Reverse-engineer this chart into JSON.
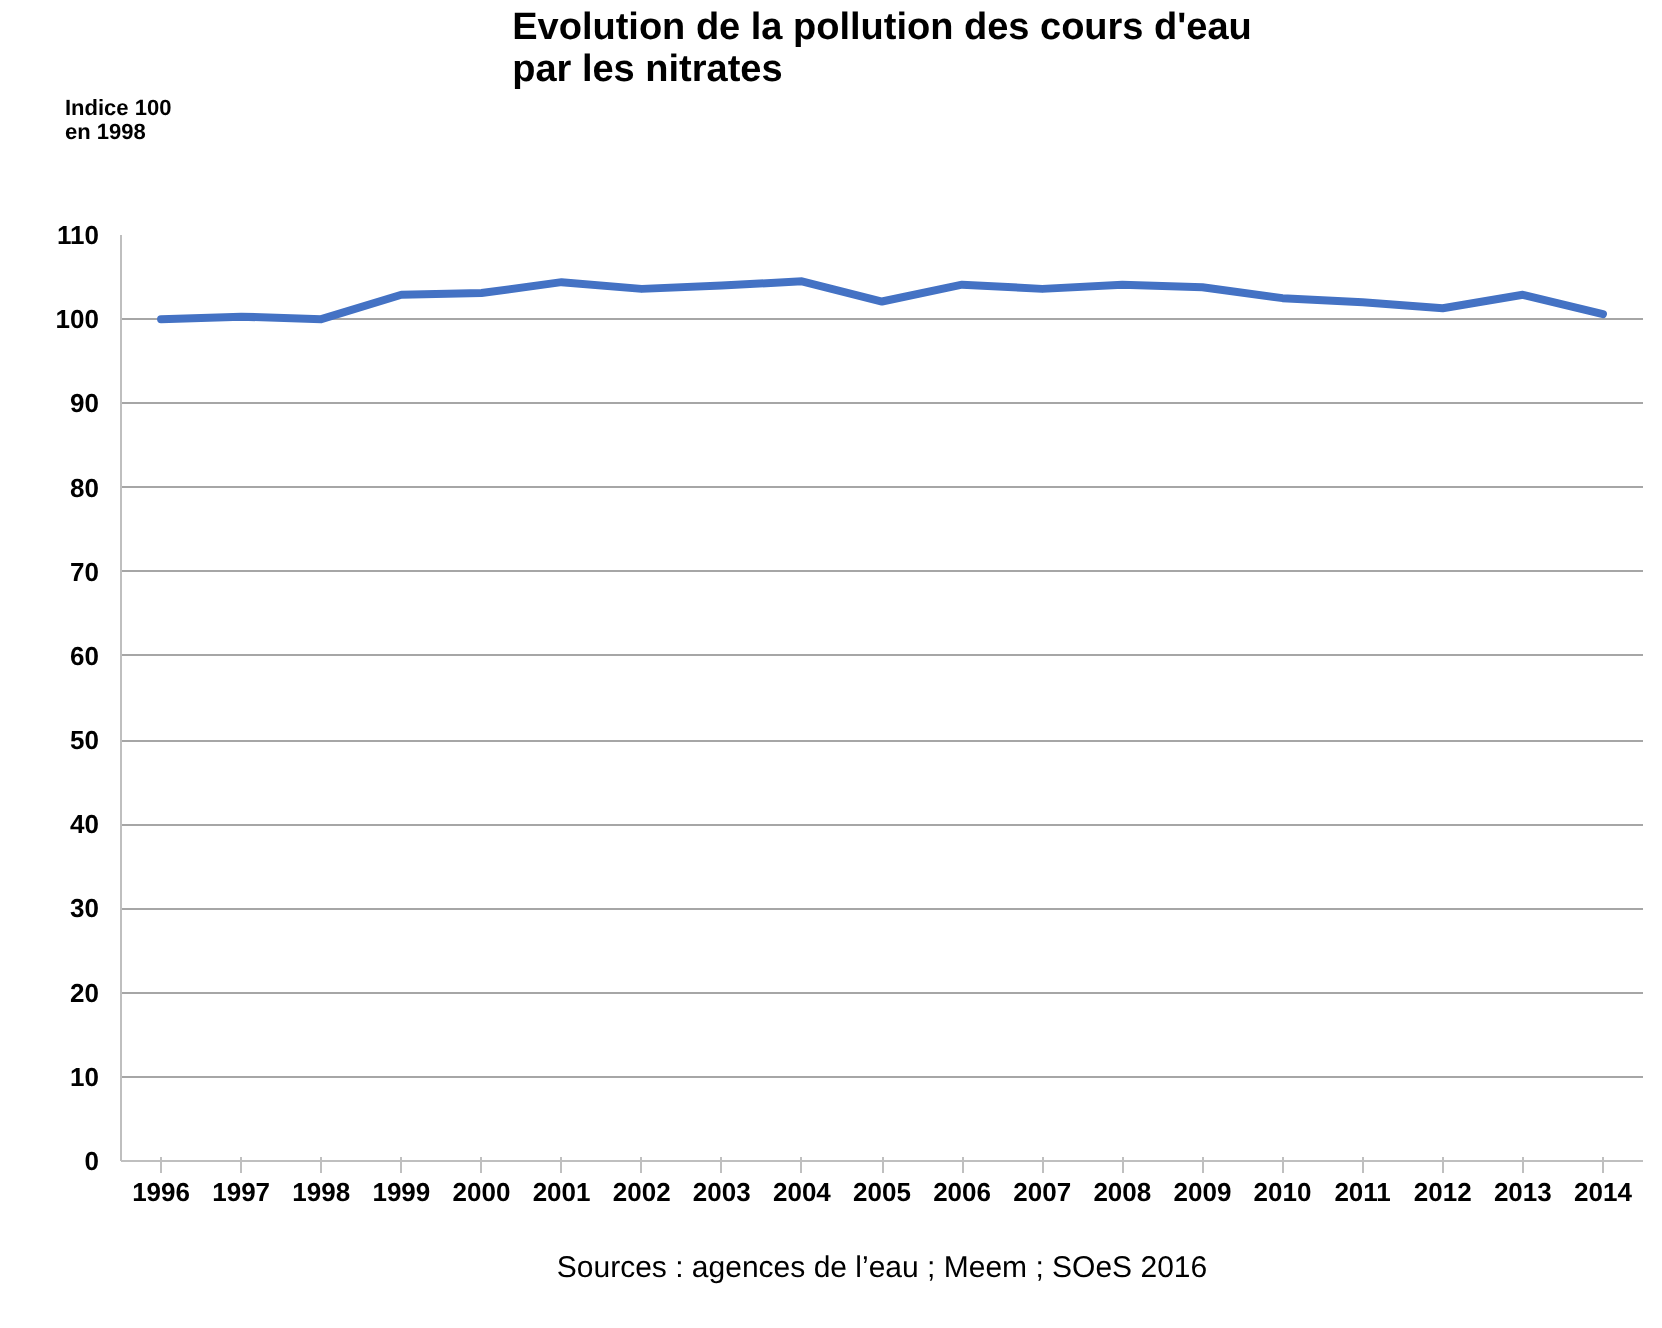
{
  "chart_data": {
    "type": "line",
    "title": "Evolution de la pollution des cours d'eau\npar les nitrates",
    "ylabel": "Indice 100\nen 1998",
    "categories": [
      "1996",
      "1997",
      "1998",
      "1999",
      "2000",
      "2001",
      "2002",
      "2003",
      "2004",
      "2005",
      "2006",
      "2007",
      "2008",
      "2009",
      "2010",
      "2011",
      "2012",
      "2013",
      "2014"
    ],
    "series": [
      {
        "color": "#4472c4",
        "values": [
          100,
          100.3,
          100,
          102.9,
          103.1,
          104.4,
          103.6,
          104,
          104.5,
          102.1,
          104.1,
          103.6,
          104.1,
          103.8,
          102.5,
          102,
          101.3,
          102.9,
          100.6
        ]
      }
    ],
    "ylim": [
      0,
      110
    ],
    "yticks": [
      0,
      10,
      20,
      30,
      40,
      50,
      60,
      70,
      80,
      90,
      100,
      110
    ],
    "grid": "y",
    "marker": "none",
    "line_style": "solid",
    "annotations": [
      "Sources : agences de l’eau ; Meem ; SOeS 2016"
    ]
  }
}
